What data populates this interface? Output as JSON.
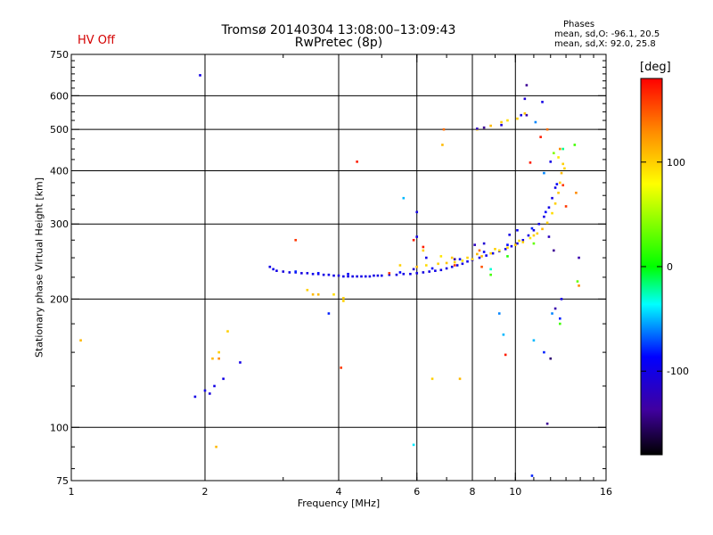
{
  "status": {
    "hv_label": "HV Off",
    "hv_color": "#d40000"
  },
  "chart_data": {
    "type": "scatter",
    "title": "Tromsø 20140304 13:08:00–13:09:43",
    "subtitle": "RwPretec (8p)",
    "xlabel": "Frequency [MHz]",
    "ylabel": "Stationary phase Virtual Height [km]",
    "x_scale": "log",
    "y_scale": "log",
    "xlim": [
      1,
      16
    ],
    "ylim": [
      75,
      750
    ],
    "xticks": [
      1,
      2,
      4,
      6,
      8,
      10,
      16
    ],
    "yticks": [
      75,
      100,
      200,
      300,
      400,
      500,
      600,
      750
    ],
    "x_gridlines": [
      2,
      4,
      6,
      8,
      10
    ],
    "y_gridlines": [
      100,
      200,
      300,
      400,
      500,
      600
    ],
    "grid": true,
    "phases": {
      "title": "Phases",
      "o_line": "mean, sd,O: -96.1, 20.5",
      "x_line": "mean, sd,X:  92.0, 25.8"
    },
    "colorbar": {
      "label": "[deg]",
      "ticks": [
        100,
        0,
        -100
      ],
      "range": [
        -180,
        180
      ]
    },
    "series": [
      {
        "points": [
          [
            2.8,
            238,
            -100
          ],
          [
            2.85,
            235,
            -95
          ],
          [
            2.9,
            233,
            -100
          ],
          [
            3.0,
            232,
            -105
          ],
          [
            3.1,
            231,
            -100
          ],
          [
            3.2,
            231,
            -98
          ],
          [
            3.3,
            230,
            -102
          ],
          [
            3.4,
            230,
            -100
          ],
          [
            3.5,
            229,
            -97
          ],
          [
            3.6,
            229,
            -103
          ],
          [
            3.7,
            228,
            -100
          ],
          [
            3.8,
            228,
            -96
          ],
          [
            3.9,
            227,
            -100
          ],
          [
            4.0,
            227,
            -104
          ],
          [
            4.1,
            226,
            -100
          ],
          [
            4.2,
            226,
            -98
          ],
          [
            4.3,
            226,
            -100
          ],
          [
            4.4,
            226,
            -102
          ],
          [
            4.5,
            226,
            -100
          ],
          [
            4.6,
            226,
            -99
          ],
          [
            4.7,
            226,
            -100
          ],
          [
            4.8,
            227,
            -101
          ],
          [
            4.9,
            227,
            -100
          ],
          [
            5.0,
            227,
            -97
          ],
          [
            5.2,
            228,
            -100
          ],
          [
            5.4,
            228,
            -103
          ],
          [
            5.6,
            229,
            -100
          ],
          [
            5.8,
            229,
            -99
          ],
          [
            6.0,
            230,
            -100
          ],
          [
            6.2,
            231,
            -102
          ],
          [
            6.4,
            232,
            -100
          ],
          [
            6.6,
            233,
            -98
          ],
          [
            6.8,
            234,
            -100
          ],
          [
            7.0,
            236,
            -101
          ],
          [
            7.2,
            238,
            -100
          ],
          [
            7.4,
            240,
            -99
          ],
          [
            7.6,
            242,
            -100
          ],
          [
            7.8,
            245,
            -100
          ],
          [
            8.0,
            247,
            -103
          ],
          [
            8.3,
            250,
            -100
          ],
          [
            8.6,
            253,
            -98
          ],
          [
            8.9,
            256,
            -100
          ],
          [
            9.2,
            259,
            -102
          ],
          [
            9.5,
            262,
            -100
          ],
          [
            9.8,
            266,
            -99
          ],
          [
            10.1,
            270,
            -100
          ],
          [
            10.4,
            275,
            -100
          ],
          [
            10.7,
            282,
            -100
          ],
          [
            11.0,
            290,
            -101
          ],
          [
            11.3,
            300,
            -100
          ],
          [
            11.6,
            312,
            -100
          ],
          [
            11.9,
            328,
            -100
          ],
          [
            12.1,
            345,
            -100
          ],
          [
            12.3,
            365,
            -100
          ],
          [
            3.2,
            232,
            -80
          ],
          [
            3.6,
            230,
            -85
          ],
          [
            4.2,
            229,
            -90
          ],
          [
            5.5,
            231,
            -85
          ],
          [
            6.5,
            236,
            -90
          ],
          [
            7.5,
            248,
            -85
          ],
          [
            8.5,
            258,
            -90
          ],
          [
            9.6,
            268,
            -85
          ],
          [
            10.9,
            293,
            -80
          ],
          [
            11.7,
            320,
            -85
          ],
          [
            12.4,
            372,
            -90
          ]
        ]
      },
      {
        "points": [
          [
            5.5,
            240,
            100
          ],
          [
            6.0,
            238,
            110
          ],
          [
            6.3,
            240,
            95
          ],
          [
            6.7,
            242,
            100
          ],
          [
            7.0,
            243,
            105
          ],
          [
            7.3,
            244,
            100
          ],
          [
            7.6,
            246,
            90
          ],
          [
            8.0,
            248,
            100
          ],
          [
            8.4,
            252,
            110
          ],
          [
            8.8,
            256,
            100
          ],
          [
            9.2,
            260,
            95
          ],
          [
            9.6,
            264,
            100
          ],
          [
            10.0,
            268,
            105
          ],
          [
            10.4,
            272,
            100
          ],
          [
            10.8,
            278,
            90
          ],
          [
            11.2,
            285,
            100
          ],
          [
            11.5,
            292,
            110
          ],
          [
            11.8,
            302,
            100
          ],
          [
            12.1,
            318,
            95
          ],
          [
            12.3,
            335,
            100
          ],
          [
            12.5,
            355,
            105
          ],
          [
            12.6,
            375,
            100
          ],
          [
            12.7,
            395,
            110
          ],
          [
            12.8,
            415,
            100
          ],
          [
            12.5,
            430,
            90
          ],
          [
            12.9,
            405,
            100
          ],
          [
            3.4,
            210,
            100
          ],
          [
            3.6,
            205,
            110
          ],
          [
            3.9,
            205,
            95
          ],
          [
            4.1,
            201,
            100
          ],
          [
            6.2,
            260,
            100
          ],
          [
            6.8,
            252,
            90
          ],
          [
            7.2,
            250,
            105
          ],
          [
            7.8,
            250,
            100
          ],
          [
            8.2,
            255,
            110
          ],
          [
            9.0,
            262,
            100
          ],
          [
            10.2,
            274,
            95
          ],
          [
            11.0,
            282,
            100
          ],
          [
            8.2,
            500,
            100
          ],
          [
            8.8,
            510,
            110
          ],
          [
            9.3,
            520,
            100
          ],
          [
            9.6,
            525,
            95
          ],
          [
            10.1,
            530,
            100
          ],
          [
            10.5,
            545,
            105
          ],
          [
            2.08,
            145,
            110
          ],
          [
            2.15,
            150,
            100
          ],
          [
            2.25,
            168,
            100
          ],
          [
            2.12,
            90,
            110
          ],
          [
            1.05,
            160,
            110
          ],
          [
            6.85,
            460,
            110
          ],
          [
            6.5,
            130,
            100
          ],
          [
            7.5,
            130,
            110
          ],
          [
            4.1,
            198,
            100
          ],
          [
            3.5,
            205,
            110
          ]
        ]
      },
      {
        "points": [
          [
            1.95,
            670,
            -100
          ],
          [
            1.9,
            118,
            -100
          ],
          [
            2.0,
            122,
            -100
          ],
          [
            2.05,
            120,
            -105
          ],
          [
            2.1,
            125,
            -100
          ],
          [
            2.2,
            130,
            -100
          ],
          [
            2.4,
            142,
            -100
          ],
          [
            5.6,
            345,
            -50
          ],
          [
            6.0,
            320,
            -100
          ],
          [
            6.0,
            280,
            -100
          ],
          [
            5.9,
            235,
            -110
          ],
          [
            3.8,
            185,
            -80
          ],
          [
            8.8,
            235,
            -30
          ],
          [
            9.2,
            185,
            -60
          ],
          [
            9.4,
            165,
            -50
          ],
          [
            10.5,
            590,
            -110
          ],
          [
            10.6,
            635,
            -140
          ],
          [
            10.6,
            540,
            -130
          ],
          [
            11.5,
            580,
            -100
          ],
          [
            11.1,
            520,
            -60
          ],
          [
            12.8,
            450,
            -20
          ],
          [
            12.0,
            420,
            -100
          ],
          [
            11.6,
            395,
            -60
          ],
          [
            13.9,
            250,
            -130
          ],
          [
            12.3,
            190,
            -130
          ],
          [
            12.6,
            180,
            -80
          ],
          [
            11.0,
            160,
            -50
          ],
          [
            11.6,
            150,
            -80
          ],
          [
            12.0,
            145,
            -150
          ],
          [
            11.8,
            102,
            -140
          ],
          [
            10.9,
            77,
            -80
          ],
          [
            5.9,
            91,
            -40
          ],
          [
            6.3,
            250,
            -100
          ],
          [
            7.3,
            248,
            -140
          ],
          [
            8.1,
            268,
            -120
          ],
          [
            8.5,
            270,
            -110
          ],
          [
            9.7,
            283,
            -100
          ],
          [
            10.1,
            290,
            -90
          ],
          [
            12.7,
            200,
            -100
          ],
          [
            8.2,
            502,
            -120
          ],
          [
            8.5,
            505,
            -140
          ],
          [
            9.3,
            512,
            -110
          ],
          [
            10.3,
            540,
            -100
          ],
          [
            12.1,
            185,
            -60
          ],
          [
            12.2,
            260,
            -140
          ],
          [
            11.9,
            280,
            -120
          ]
        ]
      },
      {
        "points": [
          [
            4.4,
            420,
            170
          ],
          [
            3.2,
            275,
            160
          ],
          [
            5.2,
            230,
            160
          ],
          [
            6.2,
            265,
            170
          ],
          [
            7.3,
            240,
            160
          ],
          [
            10.8,
            418,
            170
          ],
          [
            13.0,
            330,
            160
          ],
          [
            9.5,
            148,
            170
          ],
          [
            4.05,
            138,
            160
          ],
          [
            8.4,
            238,
            150
          ],
          [
            5.9,
            275,
            170
          ],
          [
            11.4,
            480,
            170
          ],
          [
            12.8,
            370,
            160
          ]
        ]
      },
      {
        "points": [
          [
            13.6,
            460,
            20
          ],
          [
            13.8,
            220,
            30
          ],
          [
            12.2,
            440,
            40
          ],
          [
            9.6,
            252,
            10
          ],
          [
            11.0,
            270,
            30
          ],
          [
            12.6,
            175,
            20
          ],
          [
            8.8,
            228,
            20
          ]
        ]
      },
      {
        "points": [
          [
            13.9,
            215,
            130
          ],
          [
            13.7,
            355,
            130
          ],
          [
            11.8,
            500,
            140
          ],
          [
            12.6,
            450,
            130
          ],
          [
            6.9,
            500,
            140
          ],
          [
            8.3,
            260,
            140
          ],
          [
            2.15,
            145,
            130
          ]
        ]
      }
    ]
  }
}
